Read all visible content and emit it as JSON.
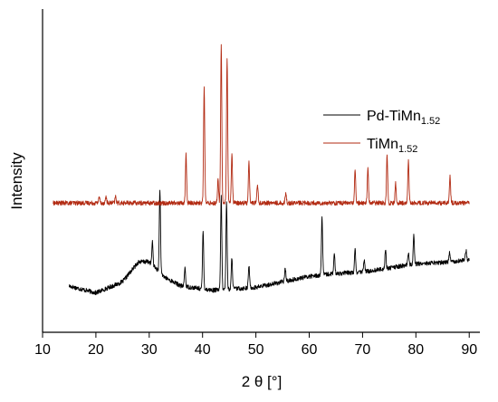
{
  "chart_data": {
    "type": "line",
    "xlabel": "2 θ [°]",
    "ylabel": "Intensity",
    "xlim": [
      10,
      92
    ],
    "ylim": [
      0,
      100
    ],
    "xticks": [
      10,
      20,
      30,
      40,
      50,
      60,
      70,
      80,
      90
    ],
    "yticks_shown": false,
    "grid": false,
    "legend_position": "right",
    "series": [
      {
        "name": "Pd-TiMn1.52",
        "legend_base": "Pd-TiMn",
        "legend_sub": "1.52",
        "color": "#000000",
        "x_range": [
          15,
          90
        ],
        "baseline": [
          [
            15,
            14.3
          ],
          [
            20,
            12.2
          ],
          [
            25,
            15.6
          ],
          [
            28,
            21.8
          ],
          [
            30,
            21.8
          ],
          [
            33,
            16.9
          ],
          [
            36,
            14.3
          ],
          [
            42,
            13.0
          ],
          [
            50,
            13.9
          ],
          [
            55,
            15.6
          ],
          [
            60,
            17.3
          ],
          [
            65,
            18.2
          ],
          [
            70,
            18.6
          ],
          [
            75,
            19.9
          ],
          [
            80,
            21.2
          ],
          [
            85,
            21.6
          ],
          [
            90,
            22.5
          ]
        ],
        "peaks": [
          [
            30.6,
            7
          ],
          [
            32.0,
            26
          ],
          [
            36.7,
            6
          ],
          [
            40.1,
            18
          ],
          [
            43.5,
            29
          ],
          [
            44.5,
            27
          ],
          [
            45.5,
            10
          ],
          [
            48.7,
            7
          ],
          [
            55.5,
            4
          ],
          [
            62.4,
            18
          ],
          [
            64.7,
            6
          ],
          [
            68.6,
            7
          ],
          [
            70.3,
            4
          ],
          [
            74.3,
            6
          ],
          [
            78.6,
            4
          ],
          [
            79.6,
            9
          ],
          [
            86.3,
            3
          ],
          [
            89.4,
            3
          ]
        ],
        "noise": 0.7
      },
      {
        "name": "TiMn1.52",
        "legend_base": "TiMn",
        "legend_sub": "1.52",
        "color": "#b22a12",
        "x_range": [
          12,
          90
        ],
        "baseline": [
          [
            12,
            40.0
          ],
          [
            90,
            40.0
          ]
        ],
        "peaks": [
          [
            20.6,
            2
          ],
          [
            21.9,
            2
          ],
          [
            23.7,
            2
          ],
          [
            36.9,
            15
          ],
          [
            40.3,
            36
          ],
          [
            42.9,
            7
          ],
          [
            43.5,
            49
          ],
          [
            44.6,
            45
          ],
          [
            45.5,
            15
          ],
          [
            48.7,
            13
          ],
          [
            50.3,
            6
          ],
          [
            55.6,
            3
          ],
          [
            68.6,
            10
          ],
          [
            71.0,
            11
          ],
          [
            74.6,
            15
          ],
          [
            76.2,
            6
          ],
          [
            78.6,
            13
          ],
          [
            86.4,
            8
          ]
        ],
        "noise": 0.7
      }
    ]
  }
}
